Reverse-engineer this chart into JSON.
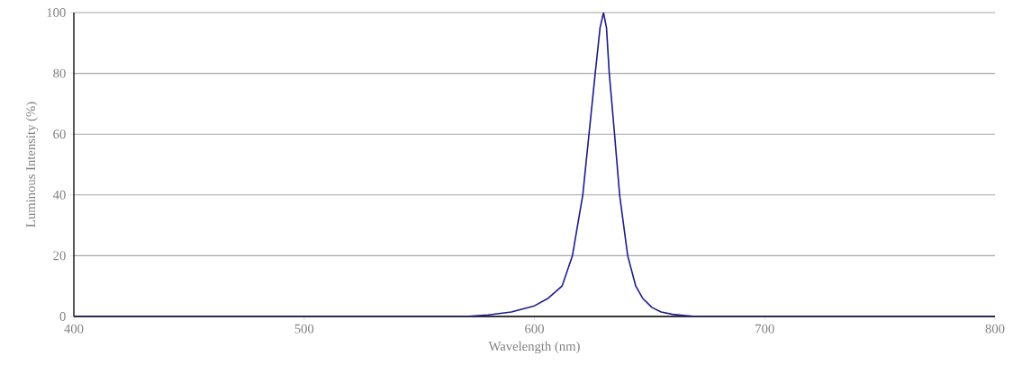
{
  "chart_data": {
    "type": "line",
    "xlabel": "Wavelength (nm)",
    "ylabel": "Luminous Intensity (%)",
    "xlim": [
      400,
      800
    ],
    "ylim": [
      0,
      100
    ],
    "xticks": [
      400,
      500,
      600,
      700,
      800
    ],
    "yticks": [
      0,
      20,
      40,
      60,
      80,
      100
    ],
    "grid": "y",
    "series": [
      {
        "color": "#1c1c8c",
        "x": [
          400,
          570,
          580,
          590,
          600,
          606,
          612,
          616.5,
          621,
          623.7,
          626.4,
          628.5,
          630,
          631.3,
          632.5,
          634.8,
          637,
          640.5,
          644,
          647,
          651,
          655,
          660,
          670,
          800
        ],
        "values": [
          0,
          0,
          0.5,
          1.5,
          3.5,
          6,
          10,
          20,
          40,
          60,
          80,
          95,
          100,
          95,
          80,
          60,
          40,
          20,
          10,
          6,
          3,
          1.5,
          0.7,
          0,
          0
        ]
      }
    ]
  }
}
